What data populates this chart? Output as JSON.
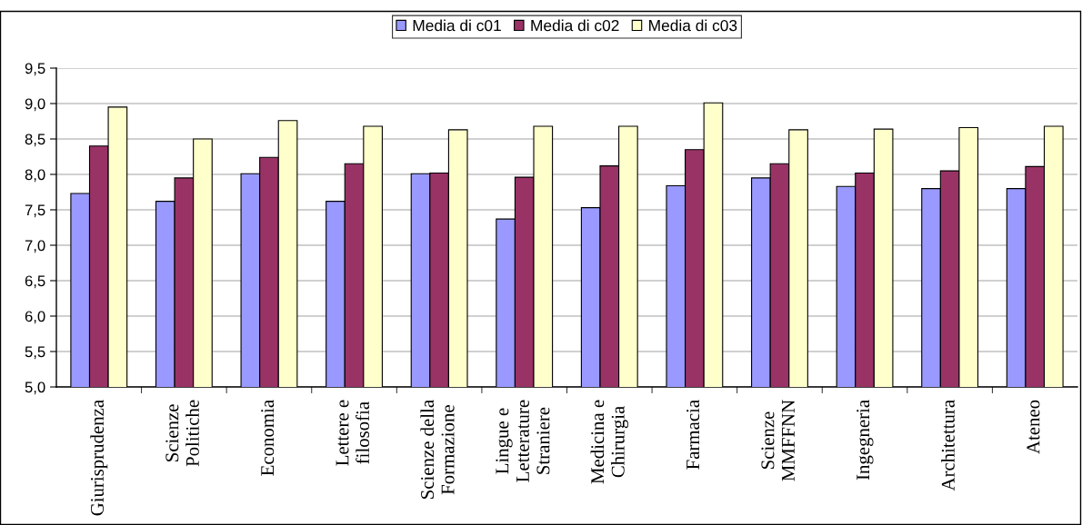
{
  "chart_data": {
    "type": "bar",
    "categories": [
      "Giurisprudenza",
      "Scienze\nPolitiche",
      "Economia",
      "Lettere e\nfilosofia",
      "Scienze della\nFormazione",
      "Lingue e\nLetterature\nStraniere",
      "Medicina e\nChirurgia",
      "Farmacia",
      "Scienze\nMMFFNN",
      "Ingegneria",
      "Architettura",
      "Ateneo"
    ],
    "series": [
      {
        "name": "Media di c01",
        "color": "#9999ff",
        "values": [
          7.73,
          7.62,
          8.01,
          7.62,
          8.01,
          7.37,
          7.53,
          7.84,
          7.95,
          7.83,
          7.8,
          7.8
        ]
      },
      {
        "name": "Media di c02",
        "color": "#993366",
        "values": [
          8.4,
          7.95,
          8.24,
          8.15,
          8.02,
          7.96,
          8.12,
          8.35,
          8.15,
          8.02,
          8.05,
          8.11
        ]
      },
      {
        "name": "Media di c03",
        "color": "#ffffcc",
        "values": [
          8.95,
          8.5,
          8.76,
          8.68,
          8.63,
          8.68,
          8.68,
          9.01,
          8.63,
          8.64,
          8.66,
          8.68
        ]
      }
    ],
    "ylim": [
      5.0,
      9.5
    ],
    "yticks": [
      {
        "value": 5.0,
        "label": "5,0"
      },
      {
        "value": 5.5,
        "label": "5,5"
      },
      {
        "value": 6.0,
        "label": "6,0"
      },
      {
        "value": 6.5,
        "label": "6,5"
      },
      {
        "value": 7.0,
        "label": "7,0"
      },
      {
        "value": 7.5,
        "label": "7,5"
      },
      {
        "value": 8.0,
        "label": "8,0"
      },
      {
        "value": 8.5,
        "label": "8,5"
      },
      {
        "value": 9.0,
        "label": "9,0"
      },
      {
        "value": 9.5,
        "label": "9,5"
      }
    ],
    "grid": "y",
    "legend": "top"
  }
}
